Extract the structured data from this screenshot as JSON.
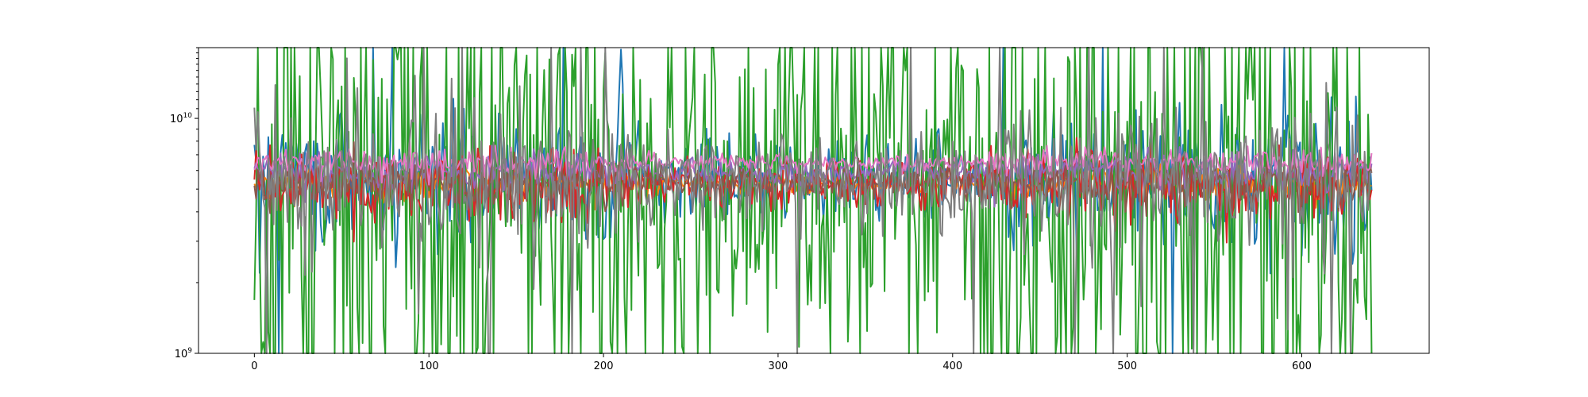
{
  "chart_data": {
    "type": "line",
    "title": "",
    "xlabel": "",
    "ylabel": "",
    "xlim": [
      -32,
      673
    ],
    "ylim": [
      1000000000,
      20000000000
    ],
    "yscale": "log",
    "grid": false,
    "legend": "none",
    "x_ticks": [
      {
        "value": 0,
        "label": "0"
      },
      {
        "value": 100,
        "label": "100"
      },
      {
        "value": 200,
        "label": "200"
      },
      {
        "value": 300,
        "label": "300"
      },
      {
        "value": 400,
        "label": "400"
      },
      {
        "value": 500,
        "label": "500"
      },
      {
        "value": 600,
        "label": "600"
      }
    ],
    "y_ticks": [
      {
        "value": 1000000000,
        "base": "10",
        "exp": "9"
      },
      {
        "value": 10000000000,
        "base": "10",
        "exp": "10"
      }
    ],
    "x": {
      "start": 0,
      "end": 640,
      "step": 1
    },
    "series": [
      {
        "color": "#1f77b4",
        "center": 5500000000.0,
        "spread": 0.35,
        "spikes": 0.02
      },
      {
        "color": "#ff7f0e",
        "center": 5300000000.0,
        "spread": 0.08,
        "spikes": 0.0
      },
      {
        "color": "#2ca02c",
        "center": 5200000000.0,
        "spread": 1.6,
        "spikes": 0.25
      },
      {
        "color": "#d62728",
        "center": 5200000000.0,
        "spread": 0.18,
        "spikes": 0.0
      },
      {
        "color": "#9467bd",
        "center": 5900000000.0,
        "spread": 0.1,
        "spikes": 0.0
      },
      {
        "color": "#8c564b",
        "center": 5300000000.0,
        "spread": 0.12,
        "spikes": 0.0
      },
      {
        "color": "#e377c2",
        "center": 6500000000.0,
        "spread": 0.07,
        "spikes": 0.0
      },
      {
        "color": "#7f7f7f",
        "center": 5400000000.0,
        "spread": 0.35,
        "spikes": 0.03
      }
    ]
  }
}
